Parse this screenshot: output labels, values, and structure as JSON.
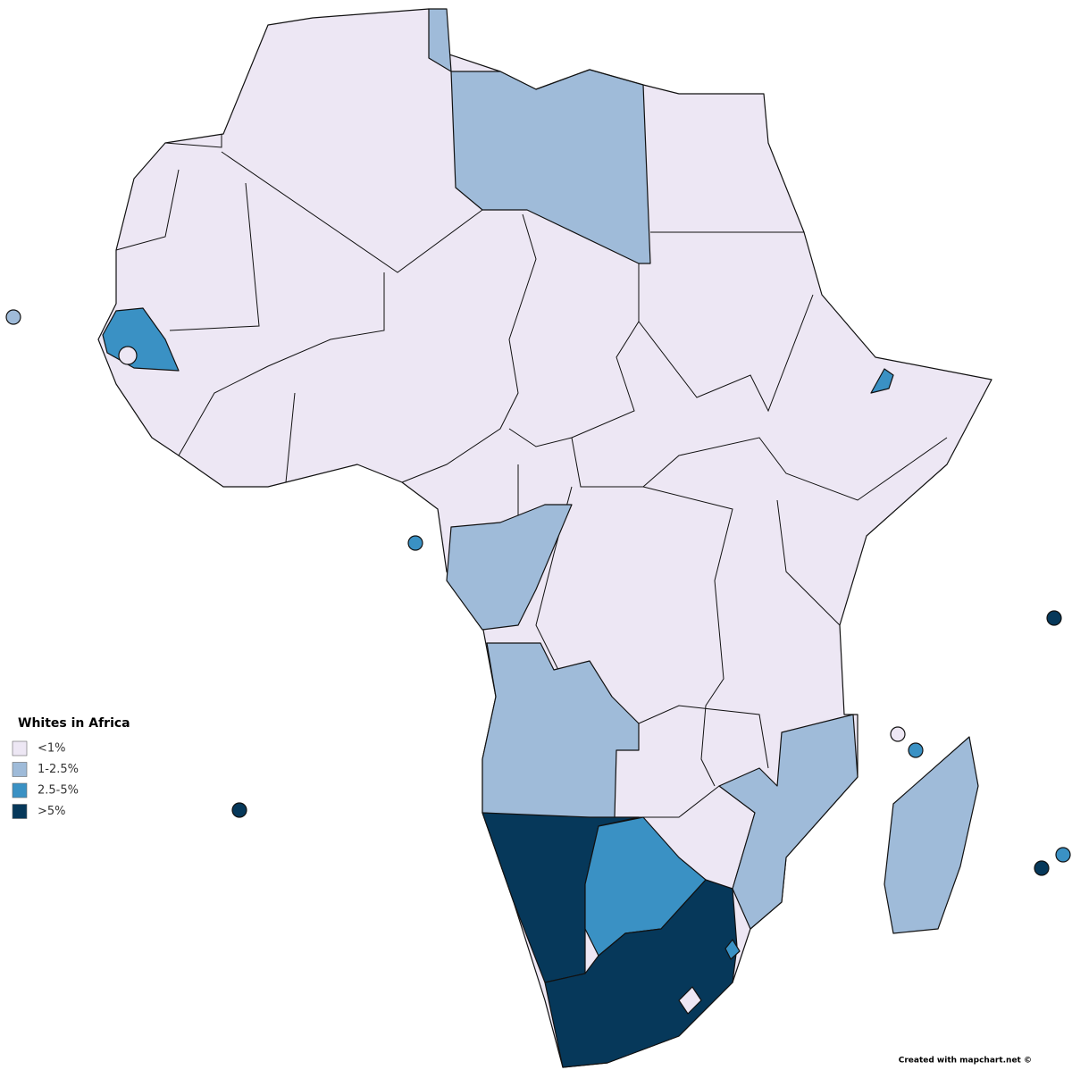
{
  "legend": {
    "title": "Whites in Africa",
    "items": [
      {
        "label": "<1%",
        "color": "#ede7f4"
      },
      {
        "label": "1-2.5%",
        "color": "#9fbbd9"
      },
      {
        "label": "2.5-5%",
        "color": "#3a91c4"
      },
      {
        "label": ">5%",
        "color": "#06385a"
      }
    ]
  },
  "credit": "Created with mapchart.net ©"
}
